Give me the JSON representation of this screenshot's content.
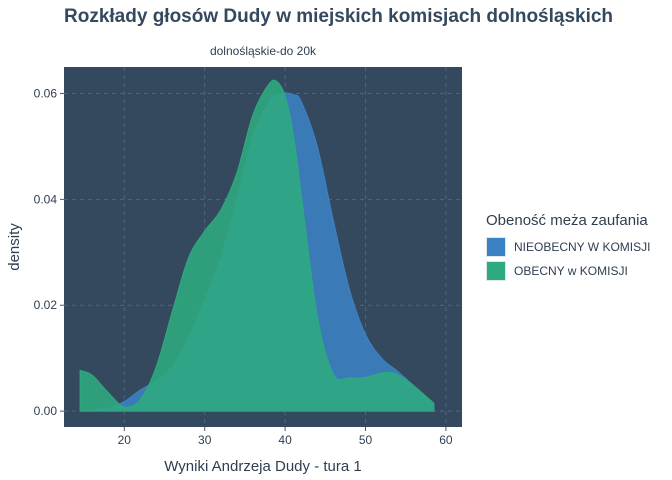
{
  "title": "Rozkłady głosów Dudy w miejskich komisjach dolnośląskich",
  "facet_label": "dolnośląskie-do 20k",
  "chart_data": {
    "type": "area",
    "title": "Rozkłady głosów Dudy w miejskich komisjach dolnośląskich",
    "xlabel": "Wyniki Andrzeja Dudy - tura 1",
    "ylabel": "density",
    "xlim": [
      12.5,
      62
    ],
    "ylim": [
      -0.003,
      0.065
    ],
    "xticks": [
      20,
      30,
      40,
      50,
      60
    ],
    "xtick_labels": [
      "20",
      "30",
      "40",
      "50",
      "60"
    ],
    "yticks": [
      0.0,
      0.02,
      0.04,
      0.06
    ],
    "ytick_labels": [
      "0.00",
      "0.02",
      "0.04",
      "0.06"
    ],
    "grid": true,
    "legend_position": "right",
    "legend_title": "Obeność meża zaufania",
    "series": [
      {
        "name": "NIEOBECNY W KOMISJI",
        "color": "#3b82c4",
        "x": [
          14.5,
          16,
          18,
          20,
          22,
          24,
          26,
          28,
          30,
          32,
          34,
          36,
          38,
          39,
          40,
          41,
          42,
          44,
          46,
          48,
          50,
          52,
          54,
          56,
          58.5
        ],
        "values": [
          0.0001,
          0.0002,
          0.0006,
          0.0018,
          0.004,
          0.0058,
          0.0085,
          0.014,
          0.021,
          0.029,
          0.04,
          0.052,
          0.0585,
          0.0598,
          0.0601,
          0.0598,
          0.0585,
          0.05,
          0.036,
          0.023,
          0.0145,
          0.01,
          0.0075,
          0.0048,
          0.0012
        ]
      },
      {
        "name": "OBECNY w KOMISJI",
        "color": "#2eaa7f",
        "x": [
          14.5,
          16,
          18,
          20,
          22,
          24,
          26,
          28,
          30,
          32,
          34,
          36,
          38,
          39,
          40,
          41,
          42,
          44,
          46,
          48,
          50,
          52,
          53,
          54,
          56,
          58.5
        ],
        "values": [
          0.0077,
          0.0068,
          0.0035,
          0.0008,
          0.0022,
          0.0085,
          0.019,
          0.029,
          0.034,
          0.038,
          0.045,
          0.056,
          0.0618,
          0.0622,
          0.0595,
          0.0525,
          0.041,
          0.018,
          0.007,
          0.0063,
          0.0064,
          0.0072,
          0.0073,
          0.0069,
          0.0048,
          0.0015
        ]
      }
    ]
  }
}
